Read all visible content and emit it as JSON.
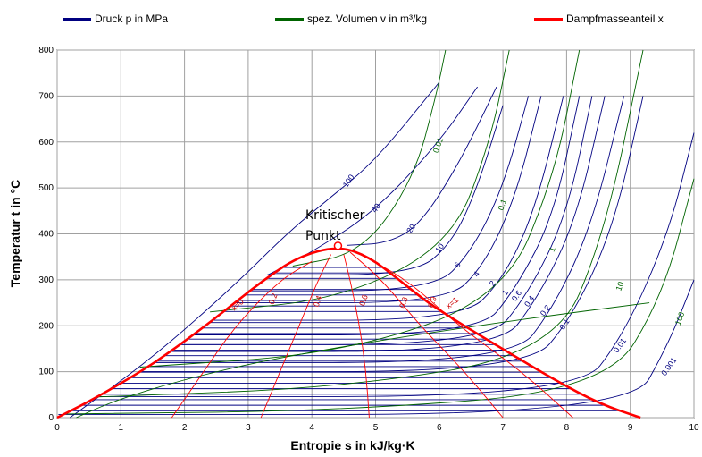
{
  "legend": [
    {
      "label": "Druck p in MPa",
      "color": "#000080"
    },
    {
      "label": "spez. Volumen v in m³/kg",
      "color": "#006400"
    },
    {
      "label": "Dampfmasseanteil x",
      "color": "#ff0000"
    }
  ],
  "chart_data": {
    "type": "line",
    "title": "",
    "xlabel": "Entropie s in kJ/kg·K",
    "ylabel": "Temperatur t in °C",
    "xlim": [
      0,
      10
    ],
    "ylim": [
      0,
      800
    ],
    "xticks": [
      "0",
      "1",
      "2",
      "3",
      "4",
      "5",
      "6",
      "7",
      "8",
      "9",
      "10"
    ],
    "yticks": [
      "0",
      "100",
      "200",
      "300",
      "400",
      "500",
      "600",
      "700",
      "800"
    ],
    "grid": true,
    "critical_point": {
      "s": 4.41,
      "t": 374,
      "label_line1": "Kritischer",
      "label_line2": "Punkt"
    },
    "saturation_dome": {
      "s": [
        0,
        0.57,
        1.31,
        1.74,
        2.33,
        2.79,
        3.25,
        3.78,
        4.41,
        4.9,
        5.37,
        5.82,
        6.39,
        7.11,
        7.84,
        8.52,
        9.16
      ],
      "t": [
        0,
        40,
        100,
        140,
        200,
        250,
        300,
        350,
        374,
        350,
        300,
        250,
        200,
        140,
        80,
        30,
        0
      ]
    },
    "quality_lines": [
      {
        "x": "0.2",
        "s": [
          1.8,
          2.3,
          2.8,
          3.5,
          4.0
        ],
        "t": [
          0,
          100,
          200,
          300,
          340
        ],
        "label_s": 3.4,
        "label_t": 245
      },
      {
        "x": "0.4",
        "s": [
          3.2,
          3.5,
          3.8,
          4.1,
          4.3
        ],
        "t": [
          0,
          100,
          200,
          300,
          355
        ],
        "label_s": 4.1,
        "label_t": 240
      },
      {
        "x": "0.6",
        "s": [
          4.9,
          4.85,
          4.75,
          4.6,
          4.5
        ],
        "t": [
          0,
          100,
          200,
          300,
          355
        ],
        "label_s": 4.82,
        "label_t": 242
      },
      {
        "x": "0.8",
        "s": [
          7.0,
          6.4,
          5.7,
          5.1,
          4.6
        ],
        "t": [
          0,
          100,
          200,
          300,
          360
        ],
        "label_s": 5.45,
        "label_t": 237
      },
      {
        "x": "0.9",
        "s": [
          8.1,
          7.3,
          6.3,
          5.5,
          4.7
        ],
        "t": [
          0,
          100,
          200,
          300,
          360
        ],
        "label_s": 5.9,
        "label_t": 238
      }
    ],
    "quality_label_x0": {
      "text": "x=0",
      "s": 2.78,
      "t": 232
    },
    "quality_label_x1": {
      "text": "x=1",
      "s": 6.15,
      "t": 236
    },
    "pressure_isobars": [
      {
        "label": "100",
        "s": [
          0.2,
          1.5,
          2.8,
          3.6,
          4.3,
          5.0,
          6.0
        ],
        "t": [
          0,
          130,
          290,
          400,
          480,
          560,
          730
        ],
        "label_s": 4.55,
        "label_t": 500
      },
      {
        "label": "40",
        "s": [
          3.3,
          4.0,
          5.0,
          6.0,
          6.6
        ],
        "t": [
          310,
          360,
          450,
          600,
          720
        ],
        "label_s": 5.0,
        "label_t": 445
      },
      {
        "label": "20",
        "s": [
          4.55,
          5.2,
          5.7,
          6.3,
          6.9
        ],
        "t": [
          375,
          380,
          420,
          550,
          720
        ],
        "label_s": 5.55,
        "label_t": 400
      },
      {
        "label": "10",
        "s": [
          3.3,
          5.6,
          6.2,
          6.6,
          7.0
        ],
        "t": [
          311,
          311,
          380,
          500,
          680
        ],
        "label_s": 6.0,
        "label_t": 358
      },
      {
        "label": "6",
        "s": [
          3.0,
          5.9,
          6.5,
          7.0,
          7.4
        ],
        "t": [
          276,
          276,
          360,
          500,
          700
        ],
        "label_s": 6.3,
        "label_t": 325
      },
      {
        "label": "4",
        "s": [
          2.8,
          6.1,
          6.7,
          7.2,
          7.6
        ],
        "t": [
          250,
          250,
          330,
          480,
          700
        ],
        "label_s": 6.6,
        "label_t": 305
      },
      {
        "label": "2",
        "s": [
          2.45,
          6.35,
          7.0,
          7.5,
          7.95
        ],
        "t": [
          212,
          212,
          300,
          450,
          700
        ],
        "label_s": 6.85,
        "label_t": 285
      },
      {
        "label": "1",
        "s": [
          2.15,
          6.6,
          7.2,
          7.8,
          8.2
        ],
        "t": [
          180,
          180,
          280,
          440,
          700
        ],
        "label_s": 7.05,
        "label_t": 265
      },
      {
        "label": "0.6",
        "s": [
          1.93,
          6.75,
          7.4,
          8.0,
          8.4
        ],
        "t": [
          159,
          159,
          270,
          440,
          700
        ],
        "label_s": 7.2,
        "label_t": 252
      },
      {
        "label": "0.4",
        "s": [
          1.78,
          6.9,
          7.55,
          8.15,
          8.6
        ],
        "t": [
          144,
          144,
          260,
          430,
          700
        ],
        "label_s": 7.4,
        "label_t": 240
      },
      {
        "label": "0.2",
        "s": [
          1.53,
          7.13,
          7.8,
          8.4,
          8.9
        ],
        "t": [
          120,
          120,
          240,
          420,
          700
        ],
        "label_s": 7.65,
        "label_t": 220
      },
      {
        "label": "0.1",
        "s": [
          1.3,
          7.36,
          8.1,
          8.75,
          9.2
        ],
        "t": [
          100,
          100,
          220,
          420,
          700
        ],
        "label_s": 7.95,
        "label_t": 190
      },
      {
        "label": "0.01",
        "s": [
          0.65,
          8.15,
          8.9,
          9.6,
          10.0
        ],
        "t": [
          46,
          46,
          180,
          400,
          620
        ],
        "label_s": 8.8,
        "label_t": 140
      },
      {
        "label": "0.001",
        "s": [
          0.02,
          8.98,
          9.6,
          10.0
        ],
        "t": [
          7,
          7,
          160,
          300
        ],
        "label_s": 9.55,
        "label_t": 90
      }
    ],
    "volume_isochores": [
      {
        "label": "0.01",
        "s": [
          3.7,
          4.8,
          5.6,
          5.95,
          6.1
        ],
        "t": [
          330,
          360,
          520,
          700,
          800
        ],
        "label_s": 5.98,
        "label_t": 575
      },
      {
        "label": "0.1",
        "s": [
          2.4,
          4.5,
          6.2,
          6.8,
          7.1
        ],
        "t": [
          230,
          260,
          380,
          600,
          800
        ],
        "label_s": 7.0,
        "label_t": 450
      },
      {
        "label": "1",
        "s": [
          1.3,
          4.5,
          7.0,
          7.8,
          8.2
        ],
        "t": [
          110,
          140,
          260,
          520,
          800
        ],
        "label_s": 7.8,
        "label_t": 360
      },
      {
        "label": "10",
        "s": [
          0.6,
          4.5,
          7.8,
          8.6,
          9.2
        ],
        "t": [
          45,
          65,
          140,
          400,
          800
        ],
        "label_s": 8.85,
        "label_t": 275
      },
      {
        "label": "100",
        "s": [
          0.1,
          4.5,
          8.6,
          9.5,
          10.0
        ],
        "t": [
          8,
          15,
          60,
          260,
          520
        ],
        "label_s": 9.78,
        "label_t": 200
      }
    ],
    "extra_isochore_s": [
      0.3,
      0.7,
      1.2,
      1.8,
      2.5,
      3.3,
      4.3,
      5.4,
      6.6,
      7.9,
      9.3
    ],
    "extra_isochore_t": [
      0,
      25,
      50,
      75,
      100,
      125,
      150,
      175,
      200,
      225,
      250
    ]
  }
}
